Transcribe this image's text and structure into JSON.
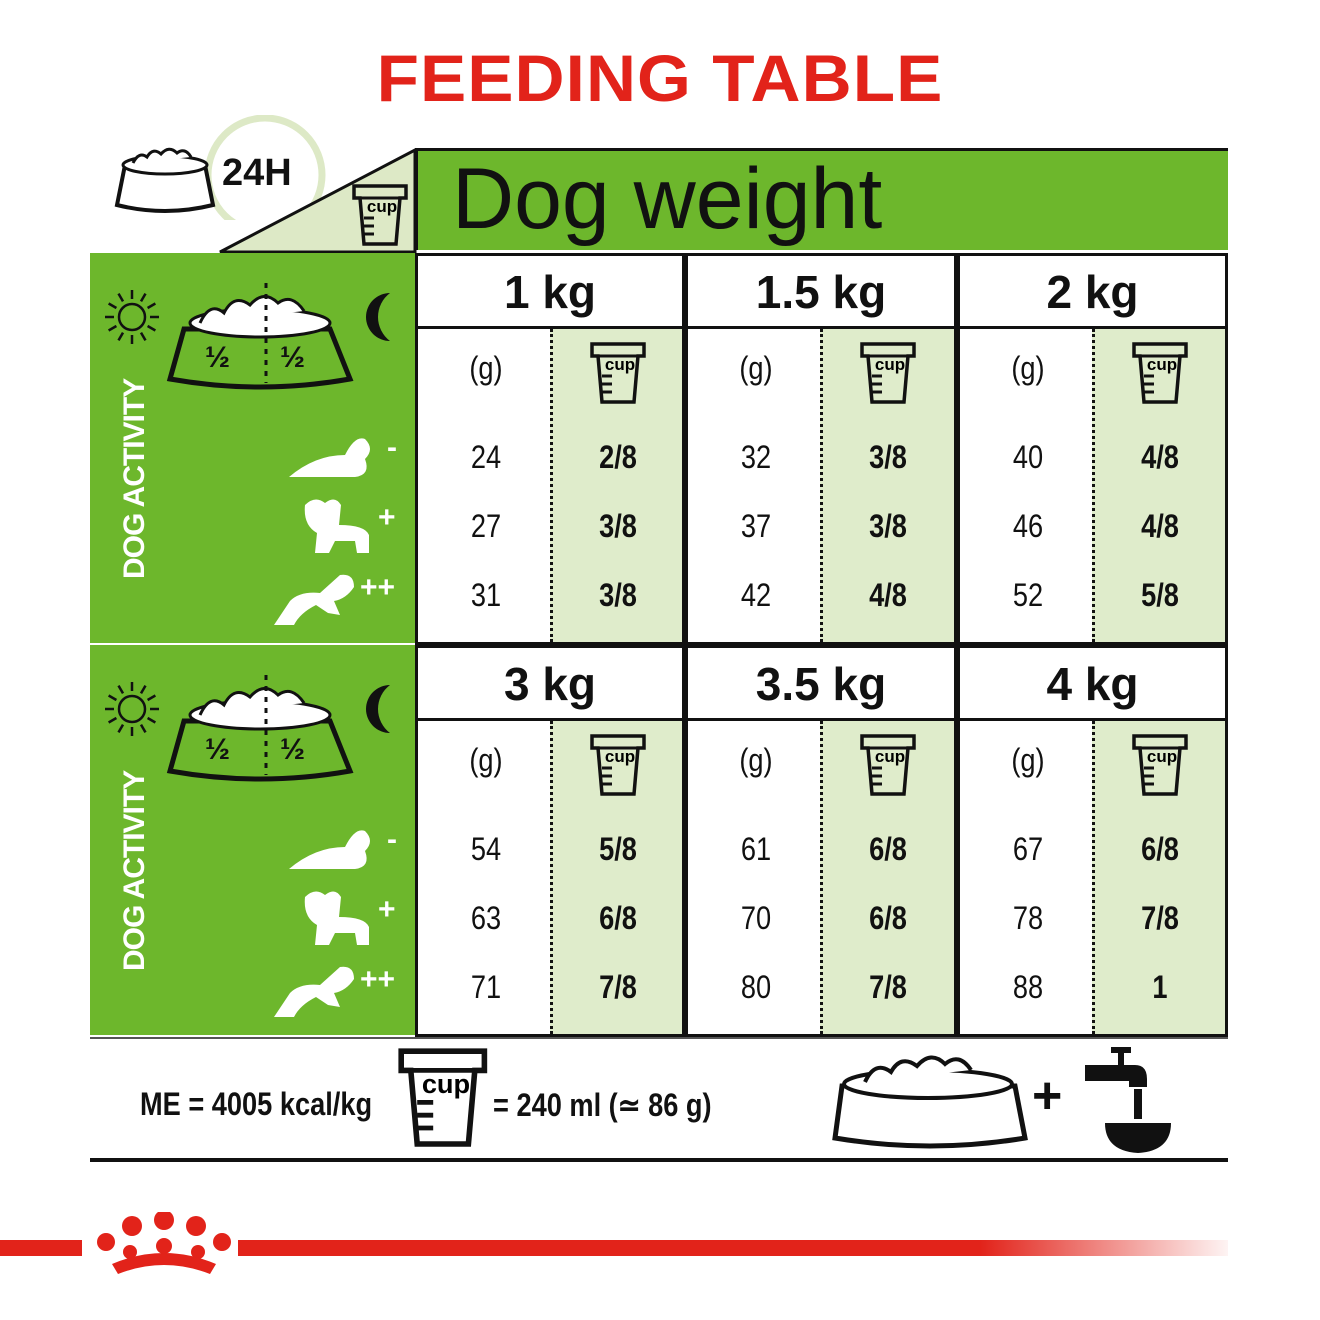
{
  "title": "FEEDING TABLE",
  "header": {
    "period": "24H",
    "dog_weight": "Dog weight",
    "cup_label": "cup"
  },
  "activity": {
    "label": "DOG ACTIVITY",
    "half": "½",
    "levels": [
      "-",
      "+",
      "++"
    ]
  },
  "table": {
    "grams_header": "(g)",
    "blocks": [
      {
        "weight": "1 kg",
        "grams": [
          "24",
          "27",
          "31"
        ],
        "cups": [
          "2/8",
          "3/8",
          "3/8"
        ]
      },
      {
        "weight": "1.5 kg",
        "grams": [
          "32",
          "37",
          "42"
        ],
        "cups": [
          "3/8",
          "3/8",
          "4/8"
        ]
      },
      {
        "weight": "2 kg",
        "grams": [
          "40",
          "46",
          "52"
        ],
        "cups": [
          "4/8",
          "4/8",
          "5/8"
        ]
      },
      {
        "weight": "3 kg",
        "grams": [
          "54",
          "63",
          "71"
        ],
        "cups": [
          "5/8",
          "6/8",
          "7/8"
        ]
      },
      {
        "weight": "3.5 kg",
        "grams": [
          "61",
          "70",
          "80"
        ],
        "cups": [
          "6/8",
          "6/8",
          "7/8"
        ]
      },
      {
        "weight": "4 kg",
        "grams": [
          "67",
          "78",
          "88"
        ],
        "cups": [
          "6/8",
          "7/8",
          "1"
        ]
      }
    ]
  },
  "footer": {
    "energy": "ME = 4005 kcal/kg",
    "cup_equiv": "= 240 ml (≃ 86 g)",
    "plus": "+"
  },
  "colors": {
    "brand_red": "#e2231a",
    "green": "#6db72c",
    "light_green": "#dfeccb"
  }
}
